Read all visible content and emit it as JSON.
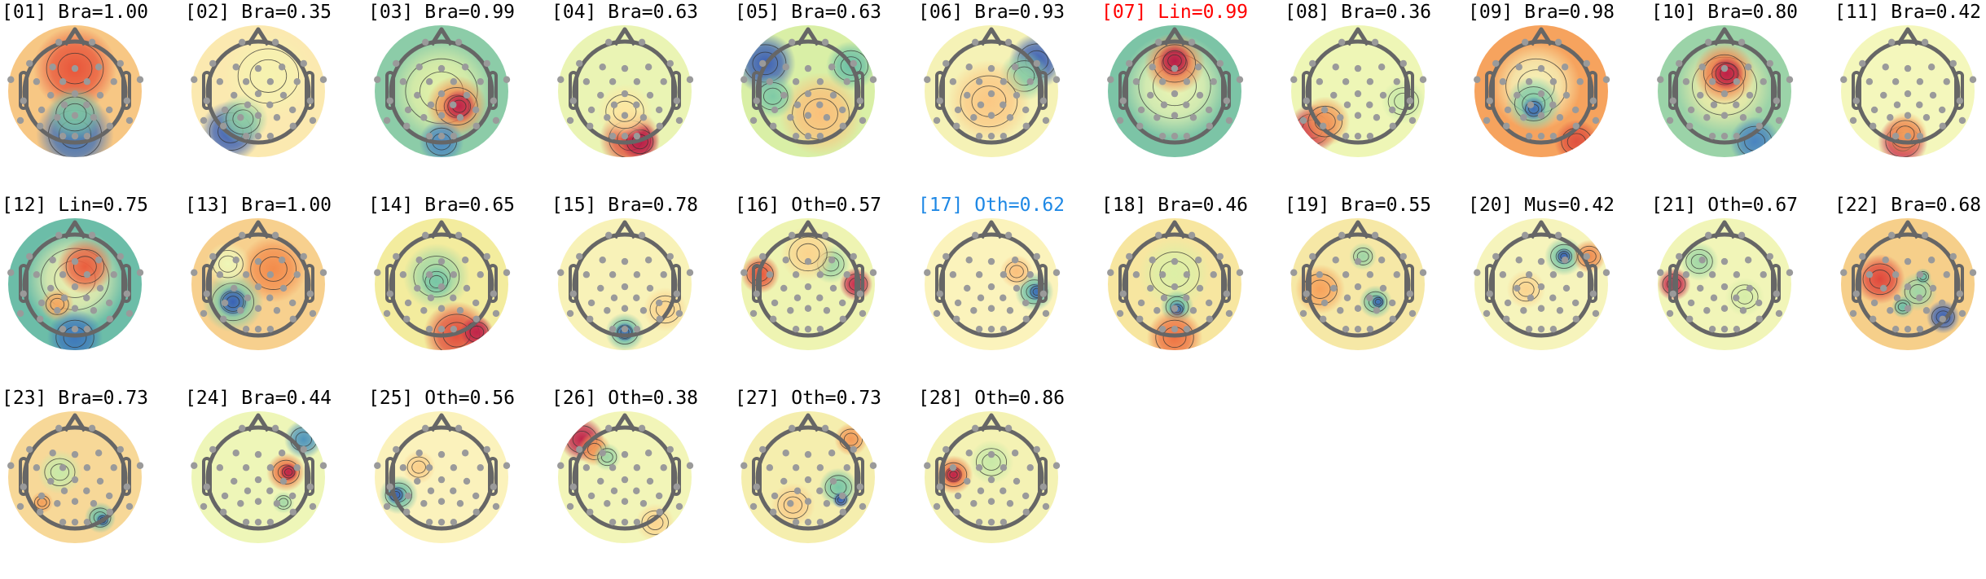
{
  "figure": {
    "title": "ICA component topomaps",
    "label_colors": {
      "default": "#000000",
      "highlight_red": "#ff0000",
      "highlight_blue": "#1e88e5"
    },
    "colormap": "RdYlBu_r-like (Spectral_r)",
    "electrode_color": "#9a9a9a",
    "head_outline_color": "#666666"
  },
  "chart_data": {
    "type": "heatmap",
    "title": "",
    "subplot_type": "scalp topography (topomap) grid",
    "layout": {
      "rows": 3,
      "cols": 11,
      "count": 28
    },
    "legend": [],
    "components": [
      {
        "index": "01",
        "label": "Bra",
        "score": 1.0,
        "title": "[01] Bra=1.00",
        "title_color": "default",
        "bg": "#f7c784",
        "blobs": [
          {
            "x": 0.0,
            "y": -0.45,
            "r": 0.75,
            "c": "#e8553a"
          },
          {
            "x": 0.0,
            "y": 0.85,
            "r": 0.7,
            "c": "#3c6fb8"
          },
          {
            "x": 0.0,
            "y": 0.45,
            "r": 0.5,
            "c": "#7cc4a4"
          }
        ]
      },
      {
        "index": "02",
        "label": "Bra",
        "score": 0.35,
        "title": "[02] Bra=0.35",
        "title_color": "default",
        "bg": "#fbe9b0",
        "blobs": [
          {
            "x": -0.55,
            "y": 0.8,
            "r": 0.55,
            "c": "#3a5fb5"
          },
          {
            "x": -0.3,
            "y": 0.55,
            "r": 0.45,
            "c": "#8fcfa5"
          },
          {
            "x": 0.2,
            "y": -0.3,
            "r": 0.8,
            "c": "#f6f2b0"
          }
        ]
      },
      {
        "index": "03",
        "label": "Bra",
        "score": 0.99,
        "title": "[03] Bra=0.99",
        "title_color": "default",
        "bg": "#8ccca8",
        "blobs": [
          {
            "x": 0.0,
            "y": 0.0,
            "r": 0.95,
            "c": "#e8f3a8"
          },
          {
            "x": 0.3,
            "y": 0.3,
            "r": 0.55,
            "c": "#f08a4f"
          },
          {
            "x": 0.35,
            "y": 0.3,
            "r": 0.3,
            "c": "#c0244a"
          },
          {
            "x": 0.0,
            "y": 1.0,
            "r": 0.4,
            "c": "#4d88c0"
          }
        ]
      },
      {
        "index": "04",
        "label": "Bra",
        "score": 0.63,
        "title": "[04] Bra=0.63",
        "title_color": "default",
        "bg": "#eaf4b4",
        "blobs": [
          {
            "x": 0.1,
            "y": 0.95,
            "r": 0.55,
            "c": "#e2513d"
          },
          {
            "x": 0.3,
            "y": 1.0,
            "r": 0.35,
            "c": "#b81e4a"
          },
          {
            "x": 0.0,
            "y": 0.4,
            "r": 0.5,
            "c": "#fde6a0"
          }
        ]
      },
      {
        "index": "05",
        "label": "Bra",
        "score": 0.63,
        "title": "[05] Bra=0.63",
        "title_color": "default",
        "bg": "#d9efa6",
        "blobs": [
          {
            "x": -0.85,
            "y": -0.55,
            "r": 0.55,
            "c": "#3b5fb5"
          },
          {
            "x": 0.85,
            "y": -0.5,
            "r": 0.45,
            "c": "#6cc0a6"
          },
          {
            "x": 0.25,
            "y": 0.45,
            "r": 0.75,
            "c": "#fbc07a"
          },
          {
            "x": -0.7,
            "y": 0.1,
            "r": 0.4,
            "c": "#7fcaa6"
          }
        ]
      },
      {
        "index": "06",
        "label": "Bra",
        "score": 0.93,
        "title": "[06] Bra=0.93",
        "title_color": "default",
        "bg": "#f5f2b6",
        "blobs": [
          {
            "x": 0.9,
            "y": -0.6,
            "r": 0.5,
            "c": "#3b5fb5"
          },
          {
            "x": 0.65,
            "y": -0.3,
            "r": 0.45,
            "c": "#8fd0a5"
          },
          {
            "x": -0.05,
            "y": 0.2,
            "r": 0.75,
            "c": "#fbc884"
          }
        ]
      },
      {
        "index": "07",
        "label": "Lin",
        "score": 0.99,
        "title": "[07] Lin=0.99",
        "title_color": "highlight_red",
        "bg": "#7cc4a6",
        "blobs": [
          {
            "x": 0.0,
            "y": -0.1,
            "r": 0.95,
            "c": "#eef6b4"
          },
          {
            "x": 0.0,
            "y": -0.55,
            "r": 0.55,
            "c": "#ee7a48"
          },
          {
            "x": 0.0,
            "y": -0.6,
            "r": 0.3,
            "c": "#b81e4a"
          }
        ]
      },
      {
        "index": "08",
        "label": "Bra",
        "score": 0.36,
        "title": "[08] Bra=0.36",
        "title_color": "default",
        "bg": "#eef6b6",
        "blobs": [
          {
            "x": -0.9,
            "y": 0.75,
            "r": 0.45,
            "c": "#c8284a"
          },
          {
            "x": -0.65,
            "y": 0.6,
            "r": 0.45,
            "c": "#f39a58"
          },
          {
            "x": 0.9,
            "y": 0.2,
            "r": 0.4,
            "c": "#c8e9a8"
          }
        ]
      },
      {
        "index": "09",
        "label": "Bra",
        "score": 0.98,
        "title": "[09] Bra=0.98",
        "title_color": "default",
        "bg": "#f6a35e",
        "blobs": [
          {
            "x": -0.1,
            "y": -0.1,
            "r": 0.8,
            "c": "#f5f5bc"
          },
          {
            "x": -0.15,
            "y": 0.25,
            "r": 0.5,
            "c": "#7ccaa8"
          },
          {
            "x": -0.15,
            "y": 0.35,
            "r": 0.22,
            "c": "#3f6fb8"
          },
          {
            "x": 0.7,
            "y": 1.0,
            "r": 0.4,
            "c": "#e0523f"
          }
        ]
      },
      {
        "index": "10",
        "label": "Bra",
        "score": 0.8,
        "title": "[10] Bra=0.80",
        "title_color": "default",
        "bg": "#9bd3a8",
        "blobs": [
          {
            "x": 0.0,
            "y": -0.1,
            "r": 0.85,
            "c": "#f7efa8"
          },
          {
            "x": 0.0,
            "y": -0.35,
            "r": 0.55,
            "c": "#ee7442"
          },
          {
            "x": 0.05,
            "y": -0.35,
            "r": 0.3,
            "c": "#bd2148"
          },
          {
            "x": 0.6,
            "y": 1.0,
            "r": 0.45,
            "c": "#4a84c0"
          }
        ]
      },
      {
        "index": "11",
        "label": "Bra",
        "score": 0.42,
        "title": "[11] Bra=0.42",
        "title_color": "default",
        "bg": "#f4f7bc",
        "blobs": [
          {
            "x": -0.1,
            "y": 1.0,
            "r": 0.45,
            "c": "#c8244a"
          },
          {
            "x": -0.05,
            "y": 0.85,
            "r": 0.4,
            "c": "#f4a05a"
          }
        ]
      },
      {
        "index": "12",
        "label": "Lin",
        "score": 0.75,
        "title": "[12] Lin=0.75",
        "title_color": "default",
        "bg": "#6cbda8",
        "blobs": [
          {
            "x": 0.0,
            "y": -0.1,
            "r": 0.9,
            "c": "#f3f2b0"
          },
          {
            "x": 0.2,
            "y": -0.35,
            "r": 0.5,
            "c": "#ea5e3e"
          },
          {
            "x": -0.35,
            "y": 0.4,
            "r": 0.3,
            "c": "#f6a860"
          },
          {
            "x": 0.0,
            "y": 1.05,
            "r": 0.5,
            "c": "#3e78bc"
          }
        ]
      },
      {
        "index": "13",
        "label": "Bra",
        "score": 1.0,
        "title": "[13] Bra=1.00",
        "title_color": "default",
        "bg": "#f7d08e",
        "blobs": [
          {
            "x": 0.3,
            "y": -0.3,
            "r": 0.6,
            "c": "#f38c4c"
          },
          {
            "x": -0.5,
            "y": 0.35,
            "r": 0.55,
            "c": "#7ccaa8"
          },
          {
            "x": -0.5,
            "y": 0.35,
            "r": 0.28,
            "c": "#3a62b6"
          },
          {
            "x": -0.6,
            "y": -0.4,
            "r": 0.4,
            "c": "#eef6b8"
          }
        ]
      },
      {
        "index": "14",
        "label": "Bra",
        "score": 0.65,
        "title": "[14] Bra=0.65",
        "title_color": "default",
        "bg": "#f3ec9e",
        "blobs": [
          {
            "x": -0.1,
            "y": -0.15,
            "r": 0.6,
            "c": "#9fd7a6"
          },
          {
            "x": -0.1,
            "y": -0.05,
            "r": 0.3,
            "c": "#78c6a6"
          },
          {
            "x": 0.3,
            "y": 1.0,
            "r": 0.6,
            "c": "#e24e3c"
          },
          {
            "x": 0.7,
            "y": 0.95,
            "r": 0.3,
            "c": "#c0244a"
          }
        ]
      },
      {
        "index": "15",
        "label": "Bra",
        "score": 0.78,
        "title": "[15] Bra=0.78",
        "title_color": "default",
        "bg": "#f8f2b8",
        "blobs": [
          {
            "x": 0.0,
            "y": 0.95,
            "r": 0.35,
            "c": "#6dbfa8"
          },
          {
            "x": 0.0,
            "y": 0.95,
            "r": 0.18,
            "c": "#3e70b8"
          },
          {
            "x": 0.8,
            "y": 0.5,
            "r": 0.4,
            "c": "#fbd48e"
          }
        ]
      },
      {
        "index": "16",
        "label": "Oth",
        "score": 0.57,
        "title": "[16] Oth=0.57",
        "title_color": "default",
        "bg": "#eef4b2",
        "blobs": [
          {
            "x": -0.95,
            "y": -0.2,
            "r": 0.35,
            "c": "#e8553a"
          },
          {
            "x": 0.95,
            "y": 0.0,
            "r": 0.3,
            "c": "#c8284a"
          },
          {
            "x": 0.45,
            "y": -0.4,
            "r": 0.35,
            "c": "#9fd6a6"
          },
          {
            "x": 0.0,
            "y": -0.6,
            "r": 0.5,
            "c": "#fbd48e"
          }
        ]
      },
      {
        "index": "17",
        "label": "Oth",
        "score": 0.62,
        "title": "[17] Oth=0.62",
        "title_color": "highlight_blue",
        "bg": "#fbf3bc",
        "blobs": [
          {
            "x": 0.85,
            "y": 0.15,
            "r": 0.35,
            "c": "#6dbfa8"
          },
          {
            "x": 0.9,
            "y": 0.15,
            "r": 0.17,
            "c": "#3e70b8"
          },
          {
            "x": 0.5,
            "y": -0.25,
            "r": 0.3,
            "c": "#fbc07c"
          }
        ]
      },
      {
        "index": "18",
        "label": "Bra",
        "score": 0.46,
        "title": "[18] Bra=0.46",
        "title_color": "default",
        "bg": "#f7e6a0",
        "blobs": [
          {
            "x": 0.0,
            "y": -0.2,
            "r": 0.65,
            "c": "#dcefa6"
          },
          {
            "x": 0.05,
            "y": 0.45,
            "r": 0.3,
            "c": "#6ec2a8"
          },
          {
            "x": 0.05,
            "y": 0.5,
            "r": 0.15,
            "c": "#3e70b8"
          },
          {
            "x": 0.0,
            "y": 1.05,
            "r": 0.5,
            "c": "#ee7242"
          }
        ]
      },
      {
        "index": "19",
        "label": "Bra",
        "score": 0.55,
        "title": "[19] Bra=0.55",
        "title_color": "default",
        "bg": "#f6e8a6",
        "blobs": [
          {
            "x": -0.75,
            "y": 0.1,
            "r": 0.45,
            "c": "#f7a35c"
          },
          {
            "x": 0.1,
            "y": -0.55,
            "r": 0.25,
            "c": "#9fd6a6"
          },
          {
            "x": 0.35,
            "y": 0.35,
            "r": 0.3,
            "c": "#78c6a6"
          },
          {
            "x": 0.4,
            "y": 0.35,
            "r": 0.13,
            "c": "#3e70b8"
          }
        ]
      },
      {
        "index": "20",
        "label": "Mus",
        "score": 0.42,
        "title": "[20] Mus=0.42",
        "title_color": "default",
        "bg": "#f6f4bc",
        "blobs": [
          {
            "x": 0.45,
            "y": -0.55,
            "r": 0.35,
            "c": "#78c6a6"
          },
          {
            "x": 0.45,
            "y": -0.55,
            "r": 0.15,
            "c": "#3a62b6"
          },
          {
            "x": 0.95,
            "y": -0.55,
            "r": 0.3,
            "c": "#f08c4e"
          },
          {
            "x": -0.3,
            "y": 0.1,
            "r": 0.35,
            "c": "#fbd590"
          }
        ]
      },
      {
        "index": "21",
        "label": "Oth",
        "score": 0.67,
        "title": "[21] Oth=0.67",
        "title_color": "default",
        "bg": "#f1f5b8",
        "blobs": [
          {
            "x": -1.0,
            "y": 0.0,
            "r": 0.3,
            "c": "#c8284a"
          },
          {
            "x": -0.5,
            "y": -0.45,
            "r": 0.35,
            "c": "#a2d8a6"
          },
          {
            "x": 0.4,
            "y": 0.25,
            "r": 0.35,
            "c": "#d6eda8"
          }
        ]
      },
      {
        "index": "22",
        "label": "Bra",
        "score": 0.68,
        "title": "[22] Bra=0.68",
        "title_color": "default",
        "bg": "#f6cf8a",
        "blobs": [
          {
            "x": -0.55,
            "y": -0.1,
            "r": 0.45,
            "c": "#e0483c"
          },
          {
            "x": 0.2,
            "y": 0.15,
            "r": 0.35,
            "c": "#9fd6a6"
          },
          {
            "x": -0.1,
            "y": 0.45,
            "r": 0.2,
            "c": "#6dbfa8"
          },
          {
            "x": 0.7,
            "y": 0.65,
            "r": 0.3,
            "c": "#3a62b6"
          },
          {
            "x": 0.3,
            "y": -0.15,
            "r": 0.15,
            "c": "#6dbfa8"
          }
        ]
      },
      {
        "index": "23",
        "label": "Bra",
        "score": 0.73,
        "title": "[23] Bra=0.73",
        "title_color": "default",
        "bg": "#f7d898",
        "blobs": [
          {
            "x": -0.3,
            "y": -0.1,
            "r": 0.4,
            "c": "#c8e9a8"
          },
          {
            "x": 0.5,
            "y": 0.8,
            "r": 0.28,
            "c": "#6dbfa8"
          },
          {
            "x": 0.55,
            "y": 0.85,
            "r": 0.13,
            "c": "#3e70b8"
          },
          {
            "x": -0.65,
            "y": 0.5,
            "r": 0.2,
            "c": "#f4a05a"
          }
        ]
      },
      {
        "index": "24",
        "label": "Bra",
        "score": 0.44,
        "title": "[24] Bra=0.44",
        "title_color": "default",
        "bg": "#eef6b8",
        "blobs": [
          {
            "x": 0.55,
            "y": -0.1,
            "r": 0.35,
            "c": "#ee7442"
          },
          {
            "x": 0.6,
            "y": -0.1,
            "r": 0.17,
            "c": "#c0244a"
          },
          {
            "x": 0.9,
            "y": -0.75,
            "r": 0.35,
            "c": "#4f95bc"
          },
          {
            "x": 0.5,
            "y": 0.5,
            "r": 0.2,
            "c": "#a6d9a6"
          }
        ]
      },
      {
        "index": "25",
        "label": "Oth",
        "score": 0.56,
        "title": "[25] Oth=0.56",
        "title_color": "default",
        "bg": "#fbf2bc",
        "blobs": [
          {
            "x": -0.85,
            "y": 0.35,
            "r": 0.35,
            "c": "#6dbfa8"
          },
          {
            "x": -0.9,
            "y": 0.35,
            "r": 0.17,
            "c": "#3a62b6"
          },
          {
            "x": -0.45,
            "y": -0.2,
            "r": 0.3,
            "c": "#fbcf8a"
          }
        ]
      },
      {
        "index": "26",
        "label": "Oth",
        "score": 0.38,
        "title": "[26] Oth=0.38",
        "title_color": "default",
        "bg": "#f2f5b8",
        "blobs": [
          {
            "x": -0.85,
            "y": -0.75,
            "r": 0.4,
            "c": "#c0244a"
          },
          {
            "x": -0.6,
            "y": -0.55,
            "r": 0.3,
            "c": "#f39a58"
          },
          {
            "x": -0.35,
            "y": -0.4,
            "r": 0.25,
            "c": "#9fd6a6"
          },
          {
            "x": 0.6,
            "y": 0.9,
            "r": 0.35,
            "c": "#fbd590"
          }
        ]
      },
      {
        "index": "27",
        "label": "Oth",
        "score": 0.73,
        "title": "[27] Oth=0.73",
        "title_color": "default",
        "bg": "#f5eeae",
        "blobs": [
          {
            "x": 0.6,
            "y": 0.2,
            "r": 0.35,
            "c": "#78c6a6"
          },
          {
            "x": 0.65,
            "y": 0.45,
            "r": 0.15,
            "c": "#3a62b6"
          },
          {
            "x": 0.85,
            "y": -0.75,
            "r": 0.3,
            "c": "#f39a58"
          },
          {
            "x": -0.3,
            "y": 0.55,
            "r": 0.4,
            "c": "#fbcd8a"
          }
        ]
      },
      {
        "index": "28",
        "label": "Oth",
        "score": 0.86,
        "title": "[28] Oth=0.86",
        "title_color": "default",
        "bg": "#f4f2b4",
        "blobs": [
          {
            "x": -0.75,
            "y": -0.05,
            "r": 0.35,
            "c": "#ee7442"
          },
          {
            "x": -0.75,
            "y": -0.05,
            "r": 0.17,
            "c": "#c0244a"
          },
          {
            "x": 0.0,
            "y": -0.3,
            "r": 0.4,
            "c": "#c8e9a8"
          }
        ]
      }
    ],
    "electrodes": [
      [
        -0.32,
        -0.97
      ],
      [
        0.34,
        -0.97
      ],
      [
        -0.9,
        -0.55
      ],
      [
        -0.44,
        -0.48
      ],
      [
        0.0,
        -0.45
      ],
      [
        0.47,
        -0.48
      ],
      [
        0.9,
        -0.55
      ],
      [
        -1.27,
        -0.23
      ],
      [
        -0.76,
        -0.19
      ],
      [
        -0.24,
        -0.19
      ],
      [
        0.24,
        -0.19
      ],
      [
        0.77,
        -0.19
      ],
      [
        1.29,
        -0.23
      ],
      [
        -1.02,
        0.19
      ],
      [
        -0.48,
        0.08
      ],
      [
        0.0,
        0.05
      ],
      [
        0.5,
        0.08
      ],
      [
        1.03,
        0.19
      ],
      [
        -0.66,
        0.37
      ],
      [
        -0.21,
        0.27
      ],
      [
        0.23,
        0.27
      ],
      [
        0.68,
        0.37
      ],
      [
        -1.08,
        0.58
      ],
      [
        -0.35,
        0.52
      ],
      [
        0.0,
        0.48
      ],
      [
        0.37,
        0.52
      ],
      [
        1.08,
        0.58
      ],
      [
        -0.69,
        0.69
      ],
      [
        0.69,
        0.69
      ],
      [
        -0.24,
        0.89
      ],
      [
        0.0,
        0.89
      ],
      [
        0.24,
        0.89
      ]
    ]
  }
}
